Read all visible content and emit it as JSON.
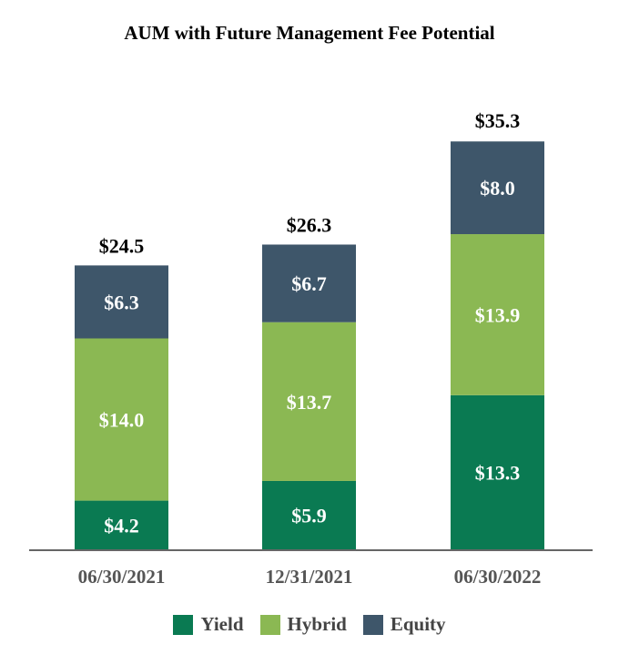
{
  "chart_data": {
    "type": "bar",
    "stacked": true,
    "title": "AUM with Future Management Fee Potential",
    "categories": [
      "06/30/2021",
      "12/31/2021",
      "06/30/2022"
    ],
    "series": [
      {
        "name": "Yield",
        "color": "#0a7a52",
        "values": [
          4.2,
          5.9,
          13.3
        ],
        "labels": [
          "$4.2",
          "$5.9",
          "$13.3"
        ]
      },
      {
        "name": "Hybrid",
        "color": "#8bb853",
        "values": [
          14.0,
          13.7,
          13.9
        ],
        "labels": [
          "$14.0",
          "$13.7",
          "$13.9"
        ]
      },
      {
        "name": "Equity",
        "color": "#3e566a",
        "values": [
          6.3,
          6.7,
          8.0
        ],
        "labels": [
          "$6.3",
          "$6.7",
          "$8.0"
        ]
      }
    ],
    "totals": [
      24.5,
      26.3,
      35.3
    ],
    "total_labels": [
      "$24.5",
      "$26.3",
      "$35.3"
    ],
    "xlabel": "",
    "ylabel": "",
    "ylim": [
      0,
      35.3
    ],
    "grid": false,
    "legend_position": "bottom"
  }
}
